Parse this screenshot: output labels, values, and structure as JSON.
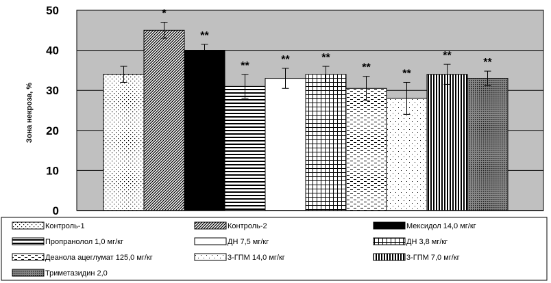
{
  "chart_data": {
    "type": "bar",
    "title": "",
    "xlabel": "",
    "ylabel": "Зона некроза, %",
    "ylim": [
      0,
      50
    ],
    "yticks": [
      "0",
      "10",
      "20",
      "30",
      "40",
      "50"
    ],
    "grid": true,
    "legend_position": "bottom",
    "series": [
      {
        "name": "Контроль-1",
        "value": 34,
        "error": 2,
        "significance": "",
        "pattern": "dots"
      },
      {
        "name": "Контроль-2",
        "value": 45,
        "error": 2,
        "significance": "*",
        "pattern": "diag-dense"
      },
      {
        "name": "Мексидол 14,0 мг/кг",
        "value": 40,
        "error": 1.5,
        "significance": "**",
        "pattern": "solid"
      },
      {
        "name": "Пропранолол 1,0 мг/кг",
        "value": 31,
        "error": 3,
        "significance": "**",
        "pattern": "hlines"
      },
      {
        "name": "ДН 7,5 мг/кг",
        "value": 33,
        "error": 2.5,
        "significance": "**",
        "pattern": "white"
      },
      {
        "name": "ДН 3,8 мг/кг",
        "value": 34,
        "error": 2,
        "significance": "**",
        "pattern": "grid"
      },
      {
        "name": "Деанола ацеглумат 125,0 мг/кг",
        "value": 30.5,
        "error": 3,
        "significance": "**",
        "pattern": "dashes"
      },
      {
        "name": "3-ГПМ 14,0 мг/кг",
        "value": 28,
        "error": 4,
        "significance": "**",
        "pattern": "sparse-dots"
      },
      {
        "name": "3-ГПМ 7,0 мг/кг",
        "value": 34,
        "error": 2.5,
        "significance": "**",
        "pattern": "vlines"
      },
      {
        "name": "Триметазидин 2,0",
        "value": 33,
        "error": 1.8,
        "significance": "**",
        "pattern": "dense-dots"
      }
    ],
    "colors": {
      "plot_background": "#c0c0c0",
      "bar_edge": "#000000",
      "grid": "#000000"
    }
  }
}
